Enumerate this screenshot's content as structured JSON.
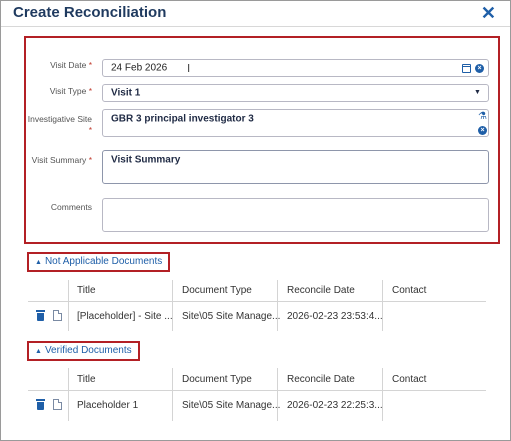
{
  "dialog": {
    "title": "Create Reconciliation",
    "close_label": "✕"
  },
  "form": {
    "visit_date": {
      "label": "Visit Date",
      "required": "*",
      "value": "24 Feb 2026"
    },
    "visit_type": {
      "label": "Visit Type",
      "required": "*",
      "value": "Visit 1"
    },
    "investigative_site": {
      "label": "Investigative Site",
      "required": "*",
      "value": "GBR 3 principal investigator 3"
    },
    "visit_summary": {
      "label": "Visit Summary",
      "required": "*",
      "value": "Visit Summary"
    },
    "comments": {
      "label": "Comments",
      "value": ""
    }
  },
  "not_applicable": {
    "toggle_label": "Not Applicable Documents",
    "columns": [
      "Title",
      "Document Type",
      "Reconcile Date",
      "Contact"
    ],
    "rows": [
      {
        "title": "[Placeholder] - Site ...",
        "document_type": "Site\\05 Site Manage...",
        "reconcile_date": "2026-02-23 23:53:4...",
        "contact": ""
      }
    ]
  },
  "verified": {
    "toggle_label": "Verified Documents",
    "columns": [
      "Title",
      "Document Type",
      "Reconcile Date",
      "Contact"
    ],
    "rows": [
      {
        "title": "Placeholder 1",
        "document_type": "Site\\05 Site Manage...",
        "reconcile_date": "2026-02-23 22:25:3...",
        "contact": ""
      }
    ]
  },
  "icons": {
    "calendar": "calendar-icon",
    "clear": "clear-icon",
    "dropdown": "chevron-down-icon",
    "flask": "flask-icon",
    "trash": "trash-icon",
    "document": "document-icon",
    "caret_up": "caret-up-icon"
  },
  "colors": {
    "accent": "#1f5fa8",
    "highlight_border": "#b32025",
    "title": "#1f3a5f",
    "required": "#c0392b"
  }
}
